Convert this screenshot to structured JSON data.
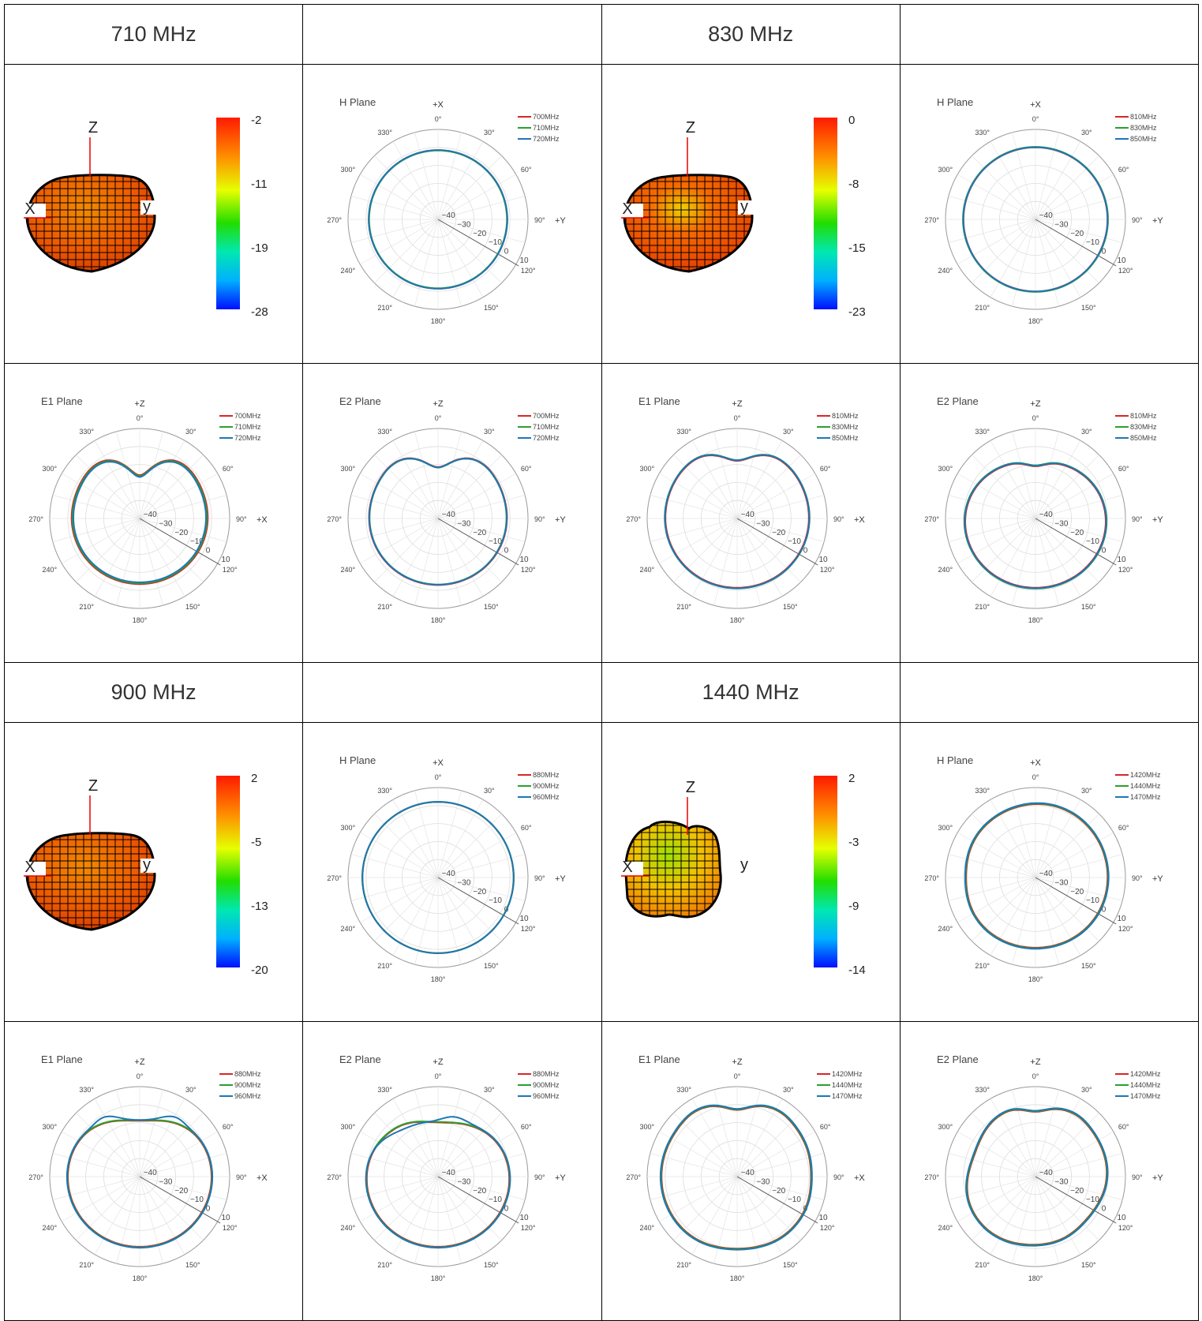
{
  "sections": [
    {
      "headers": [
        "710 MHz",
        "",
        "830 MHz",
        ""
      ],
      "top_row": [
        {
          "kind": "pattern3d",
          "colorbar": [
            "-2",
            "-11",
            "-19",
            "-28"
          ],
          "shape": "tomato",
          "lean": 0
        },
        {
          "kind": "polar",
          "ref": "s0h1"
        },
        {
          "kind": "pattern3d",
          "colorbar": [
            "0",
            "-8",
            "-15",
            "-23"
          ],
          "shape": "tomato",
          "lean": 1
        },
        {
          "kind": "polar",
          "ref": "s0h2"
        }
      ],
      "bottom_row": [
        {
          "kind": "polar",
          "ref": "s0e1a"
        },
        {
          "kind": "polar",
          "ref": "s0e2a"
        },
        {
          "kind": "polar",
          "ref": "s0e1b"
        },
        {
          "kind": "polar",
          "ref": "s0e2b"
        }
      ]
    },
    {
      "headers": [
        "900 MHz",
        "",
        "1440 MHz",
        ""
      ],
      "top_row": [
        {
          "kind": "pattern3d",
          "colorbar": [
            "2",
            "-5",
            "-13",
            "-20"
          ],
          "shape": "tomato",
          "lean": 0
        },
        {
          "kind": "polar",
          "ref": "s1h1"
        },
        {
          "kind": "pattern3d",
          "colorbar": [
            "2",
            "-3",
            "-9",
            "-14"
          ],
          "shape": "lobed",
          "lean": 0
        },
        {
          "kind": "polar",
          "ref": "s1h2"
        }
      ],
      "bottom_row": [
        {
          "kind": "polar",
          "ref": "s1e1a"
        },
        {
          "kind": "polar",
          "ref": "s1e2a"
        },
        {
          "kind": "polar",
          "ref": "s1e1b"
        },
        {
          "kind": "polar",
          "ref": "s1e2b"
        }
      ]
    }
  ],
  "pattern3d_axes": {
    "z": "Z",
    "x": "X",
    "y": "y"
  },
  "polar_common": {
    "type": "polar",
    "r_ticks": [
      "−40",
      "−30",
      "−20",
      "−10",
      "0",
      "10"
    ],
    "r_range": [
      -40,
      10
    ],
    "angle_ticks": [
      "0°",
      "30°",
      "60°",
      "90°",
      "120°",
      "150°",
      "180°",
      "210°",
      "240°",
      "270°",
      "300°",
      "330°"
    ],
    "series_colors": [
      "#d62728",
      "#2ca02c",
      "#1f77b4"
    ],
    "grid": true,
    "legend": "top-right"
  },
  "chart_data": [
    {
      "id": "s0h1",
      "title": "H Plane",
      "top_axis": "+X",
      "right_axis": "+Y",
      "legend": [
        "700MHz",
        "710MHz",
        "720MHz"
      ],
      "profile": "circle",
      "r0": -1.5,
      "dr": [
        0,
        -0.2,
        0
      ]
    },
    {
      "id": "s0h2",
      "title": "H Plane",
      "top_axis": "+X",
      "right_axis": "+Y",
      "legend": [
        "810MHz",
        "830MHz",
        "850MHz"
      ],
      "profile": "circle",
      "r0": 0,
      "dr": [
        0,
        0.3,
        0.1
      ]
    },
    {
      "id": "s0e1a",
      "title": "E1 Plane",
      "top_axis": "+Z",
      "right_axis": "+X",
      "legend": [
        "700MHz",
        "710MHz",
        "720MHz"
      ],
      "profile": "e1",
      "r0": -2,
      "dip": 14,
      "bump": 1,
      "dr": [
        0,
        -0.5,
        -1
      ]
    },
    {
      "id": "s0e2a",
      "title": "E2 Plane",
      "top_axis": "+Z",
      "right_axis": "+Y",
      "legend": [
        "700MHz",
        "710MHz",
        "720MHz"
      ],
      "profile": "e1",
      "r0": -1.5,
      "dip": 10,
      "bump": 1,
      "dr": [
        0,
        -0.3,
        -0.2
      ]
    },
    {
      "id": "s0e1b",
      "title": "E1 Plane",
      "top_axis": "+Z",
      "right_axis": "+X",
      "legend": [
        "810MHz",
        "830MHz",
        "850MHz"
      ],
      "profile": "e1",
      "r0": 0,
      "dip": 8,
      "bump": 0.5,
      "dr": [
        0,
        0.4,
        0.3
      ]
    },
    {
      "id": "s0e2b",
      "title": "E2 Plane",
      "top_axis": "+Z",
      "right_axis": "+Y",
      "legend": [
        "810MHz",
        "830MHz",
        "850MHz"
      ],
      "profile": "e2flat",
      "r0": 0,
      "dip": 3,
      "bump": 0,
      "dr": [
        0,
        0.5,
        0.3
      ]
    },
    {
      "id": "s1h1",
      "title": "H Plane",
      "top_axis": "+X",
      "right_axis": "+Y",
      "legend": [
        "880MHz",
        "900MHz",
        "960MHz"
      ],
      "profile": "circle",
      "r0": 2,
      "dr": [
        0,
        0,
        0.1
      ]
    },
    {
      "id": "s1h2",
      "title": "H Plane",
      "top_axis": "+X",
      "right_axis": "+Y",
      "legend": [
        "1420MHz",
        "1440MHz",
        "1470MHz"
      ],
      "profile": "hlobe",
      "r0": 0,
      "dr": [
        0,
        0.3,
        0.6
      ]
    },
    {
      "id": "s1e1a",
      "title": "E1 Plane",
      "top_axis": "+Z",
      "right_axis": "+X",
      "legend": [
        "880MHz",
        "900MHz",
        "960MHz"
      ],
      "profile": "e1wide",
      "r0": 0,
      "dip": 3,
      "bump": 3,
      "dr": [
        0,
        0.3,
        0.5
      ]
    },
    {
      "id": "s1e2a",
      "title": "E2 Plane",
      "top_axis": "+Z",
      "right_axis": "+Y",
      "legend": [
        "880MHz",
        "900MHz",
        "960MHz"
      ],
      "profile": "e2wide",
      "r0": 0,
      "dip": 3,
      "bump": 2,
      "dr": [
        0,
        0.3,
        0.5
      ]
    },
    {
      "id": "s1e1b",
      "title": "E1 Plane",
      "top_axis": "+Z",
      "right_axis": "+X",
      "legend": [
        "1420MHz",
        "1440MHz",
        "1470MHz"
      ],
      "profile": "e1tall",
      "r0": 2,
      "dip": 5,
      "bump": 1,
      "dr": [
        0,
        0.3,
        0.6
      ]
    },
    {
      "id": "s1e2b",
      "title": "E2 Plane",
      "top_axis": "+Z",
      "right_axis": "+Y",
      "legend": [
        "1420MHz",
        "1440MHz",
        "1470MHz"
      ],
      "profile": "e2tall",
      "r0": 0,
      "dip": 4,
      "bump": 1,
      "dr": [
        0,
        0.3,
        0.6
      ]
    }
  ]
}
